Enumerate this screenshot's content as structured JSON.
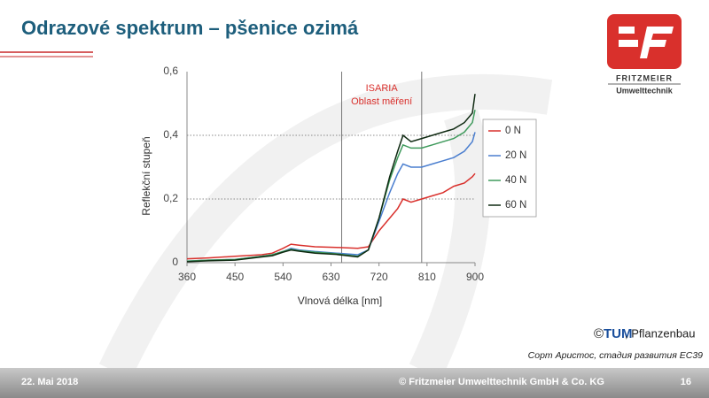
{
  "slide": {
    "title": "Odrazové spektrum – pšenice ozimá",
    "logo_name": "FRITZMEIER",
    "logo_sub": "Umwelttechnik",
    "credit_symbol": "©",
    "credit_logo": "TUM",
    "credit_text": ", Pflanzenbau",
    "caption": "Сорт Аристос, стадия развития ЕС39",
    "footer_date": "22. Mai 2018",
    "footer_company": "© Fritzmeier Umwelttechnik GmbH & Co. KG",
    "footer_page": "16"
  },
  "chart_data": {
    "type": "line",
    "x_label": "Vlnová délka [nm]",
    "y_label": "Reflekční stupeň",
    "x": [
      360,
      400,
      450,
      500,
      520,
      540,
      555,
      570,
      600,
      640,
      680,
      700,
      720,
      740,
      755,
      765,
      780,
      800,
      820,
      840,
      860,
      880,
      895,
      900
    ],
    "series": [
      {
        "name": "0 N",
        "color": "#d9302c",
        "values": [
          0.012,
          0.015,
          0.02,
          0.025,
          0.03,
          0.045,
          0.058,
          0.055,
          0.05,
          0.048,
          0.045,
          0.05,
          0.1,
          0.14,
          0.17,
          0.2,
          0.19,
          0.2,
          0.21,
          0.22,
          0.24,
          0.25,
          0.27,
          0.28
        ]
      },
      {
        "name": "20 N",
        "color": "#4a7ecf",
        "values": [
          0.005,
          0.008,
          0.01,
          0.02,
          0.025,
          0.035,
          0.045,
          0.04,
          0.035,
          0.03,
          0.025,
          0.04,
          0.13,
          0.22,
          0.28,
          0.31,
          0.3,
          0.3,
          0.31,
          0.32,
          0.33,
          0.35,
          0.38,
          0.41
        ]
      },
      {
        "name": "40 N",
        "color": "#3f9a5c",
        "values": [
          0.005,
          0.008,
          0.01,
          0.02,
          0.025,
          0.035,
          0.042,
          0.038,
          0.033,
          0.028,
          0.02,
          0.04,
          0.14,
          0.26,
          0.33,
          0.37,
          0.36,
          0.36,
          0.37,
          0.38,
          0.39,
          0.41,
          0.44,
          0.48
        ]
      },
      {
        "name": "60 N",
        "color": "#0f2a12",
        "values": [
          0.003,
          0.006,
          0.008,
          0.018,
          0.022,
          0.033,
          0.04,
          0.036,
          0.03,
          0.026,
          0.018,
          0.04,
          0.14,
          0.27,
          0.35,
          0.4,
          0.38,
          0.39,
          0.4,
          0.41,
          0.42,
          0.44,
          0.47,
          0.53
        ]
      }
    ],
    "xlim": [
      360,
      900
    ],
    "xticks": [
      360,
      450,
      540,
      630,
      720,
      810,
      900
    ],
    "ylim": [
      0,
      0.6
    ],
    "yticks": [
      {
        "value": 0,
        "label": "0"
      },
      {
        "value": 0.2,
        "label": "0,2"
      },
      {
        "value": 0.4,
        "label": "0,4"
      },
      {
        "value": 0.6,
        "label": "0,6"
      }
    ],
    "grid": true,
    "legend": "right",
    "region": {
      "x": [
        650,
        800
      ],
      "label_lines": [
        "ISARIA",
        "Oblast měření"
      ],
      "color": "#d9302c"
    }
  }
}
